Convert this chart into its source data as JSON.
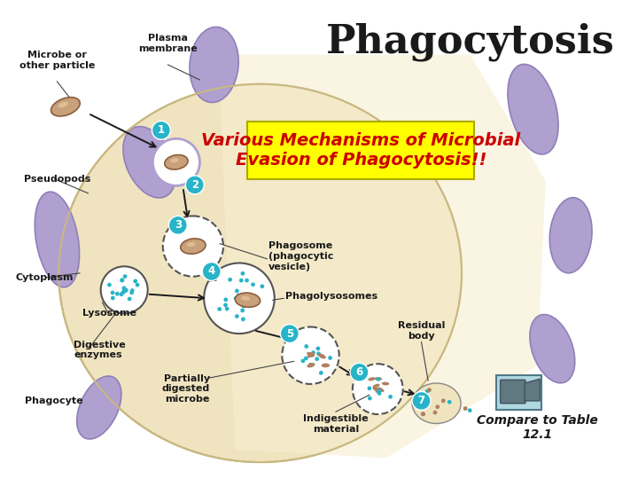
{
  "title": "Phagocytosis",
  "title_fontsize": 32,
  "title_color": "#1a1a1a",
  "overlay_text_line1": "Various Mechanisms of Microbial",
  "overlay_text_line2": "Evasion of Phagocytosis!!",
  "overlay_bg": "#ffff00",
  "overlay_text_color": "#cc0000",
  "overlay_fontsize": 14,
  "compare_text": "Compare to Table\n12.1",
  "compare_fontsize": 10,
  "bg_color": "#ffffff",
  "cell_body_color": "#f0e4c0",
  "cell_body_edge": "#c8b880",
  "cell_highlight_color": "#f8edd0",
  "pseudopod_color": "#b0a0d0",
  "pseudopod_edge": "#9080b8",
  "step_circle_color": "#28b4c8",
  "step_circle_text": "#ffffff",
  "label_fontsize": 8.0,
  "label_color": "#1a1a1a",
  "microbe_color": "#c8a07a",
  "microbe_edge": "#8b5e3c",
  "dot_color": "#28b4c8",
  "partial_color": "#b08060",
  "arrow_color": "#1a1a1a",
  "vesicle_edge": "#555555",
  "video_bg": "#b0d8e0",
  "video_body": "#607880"
}
